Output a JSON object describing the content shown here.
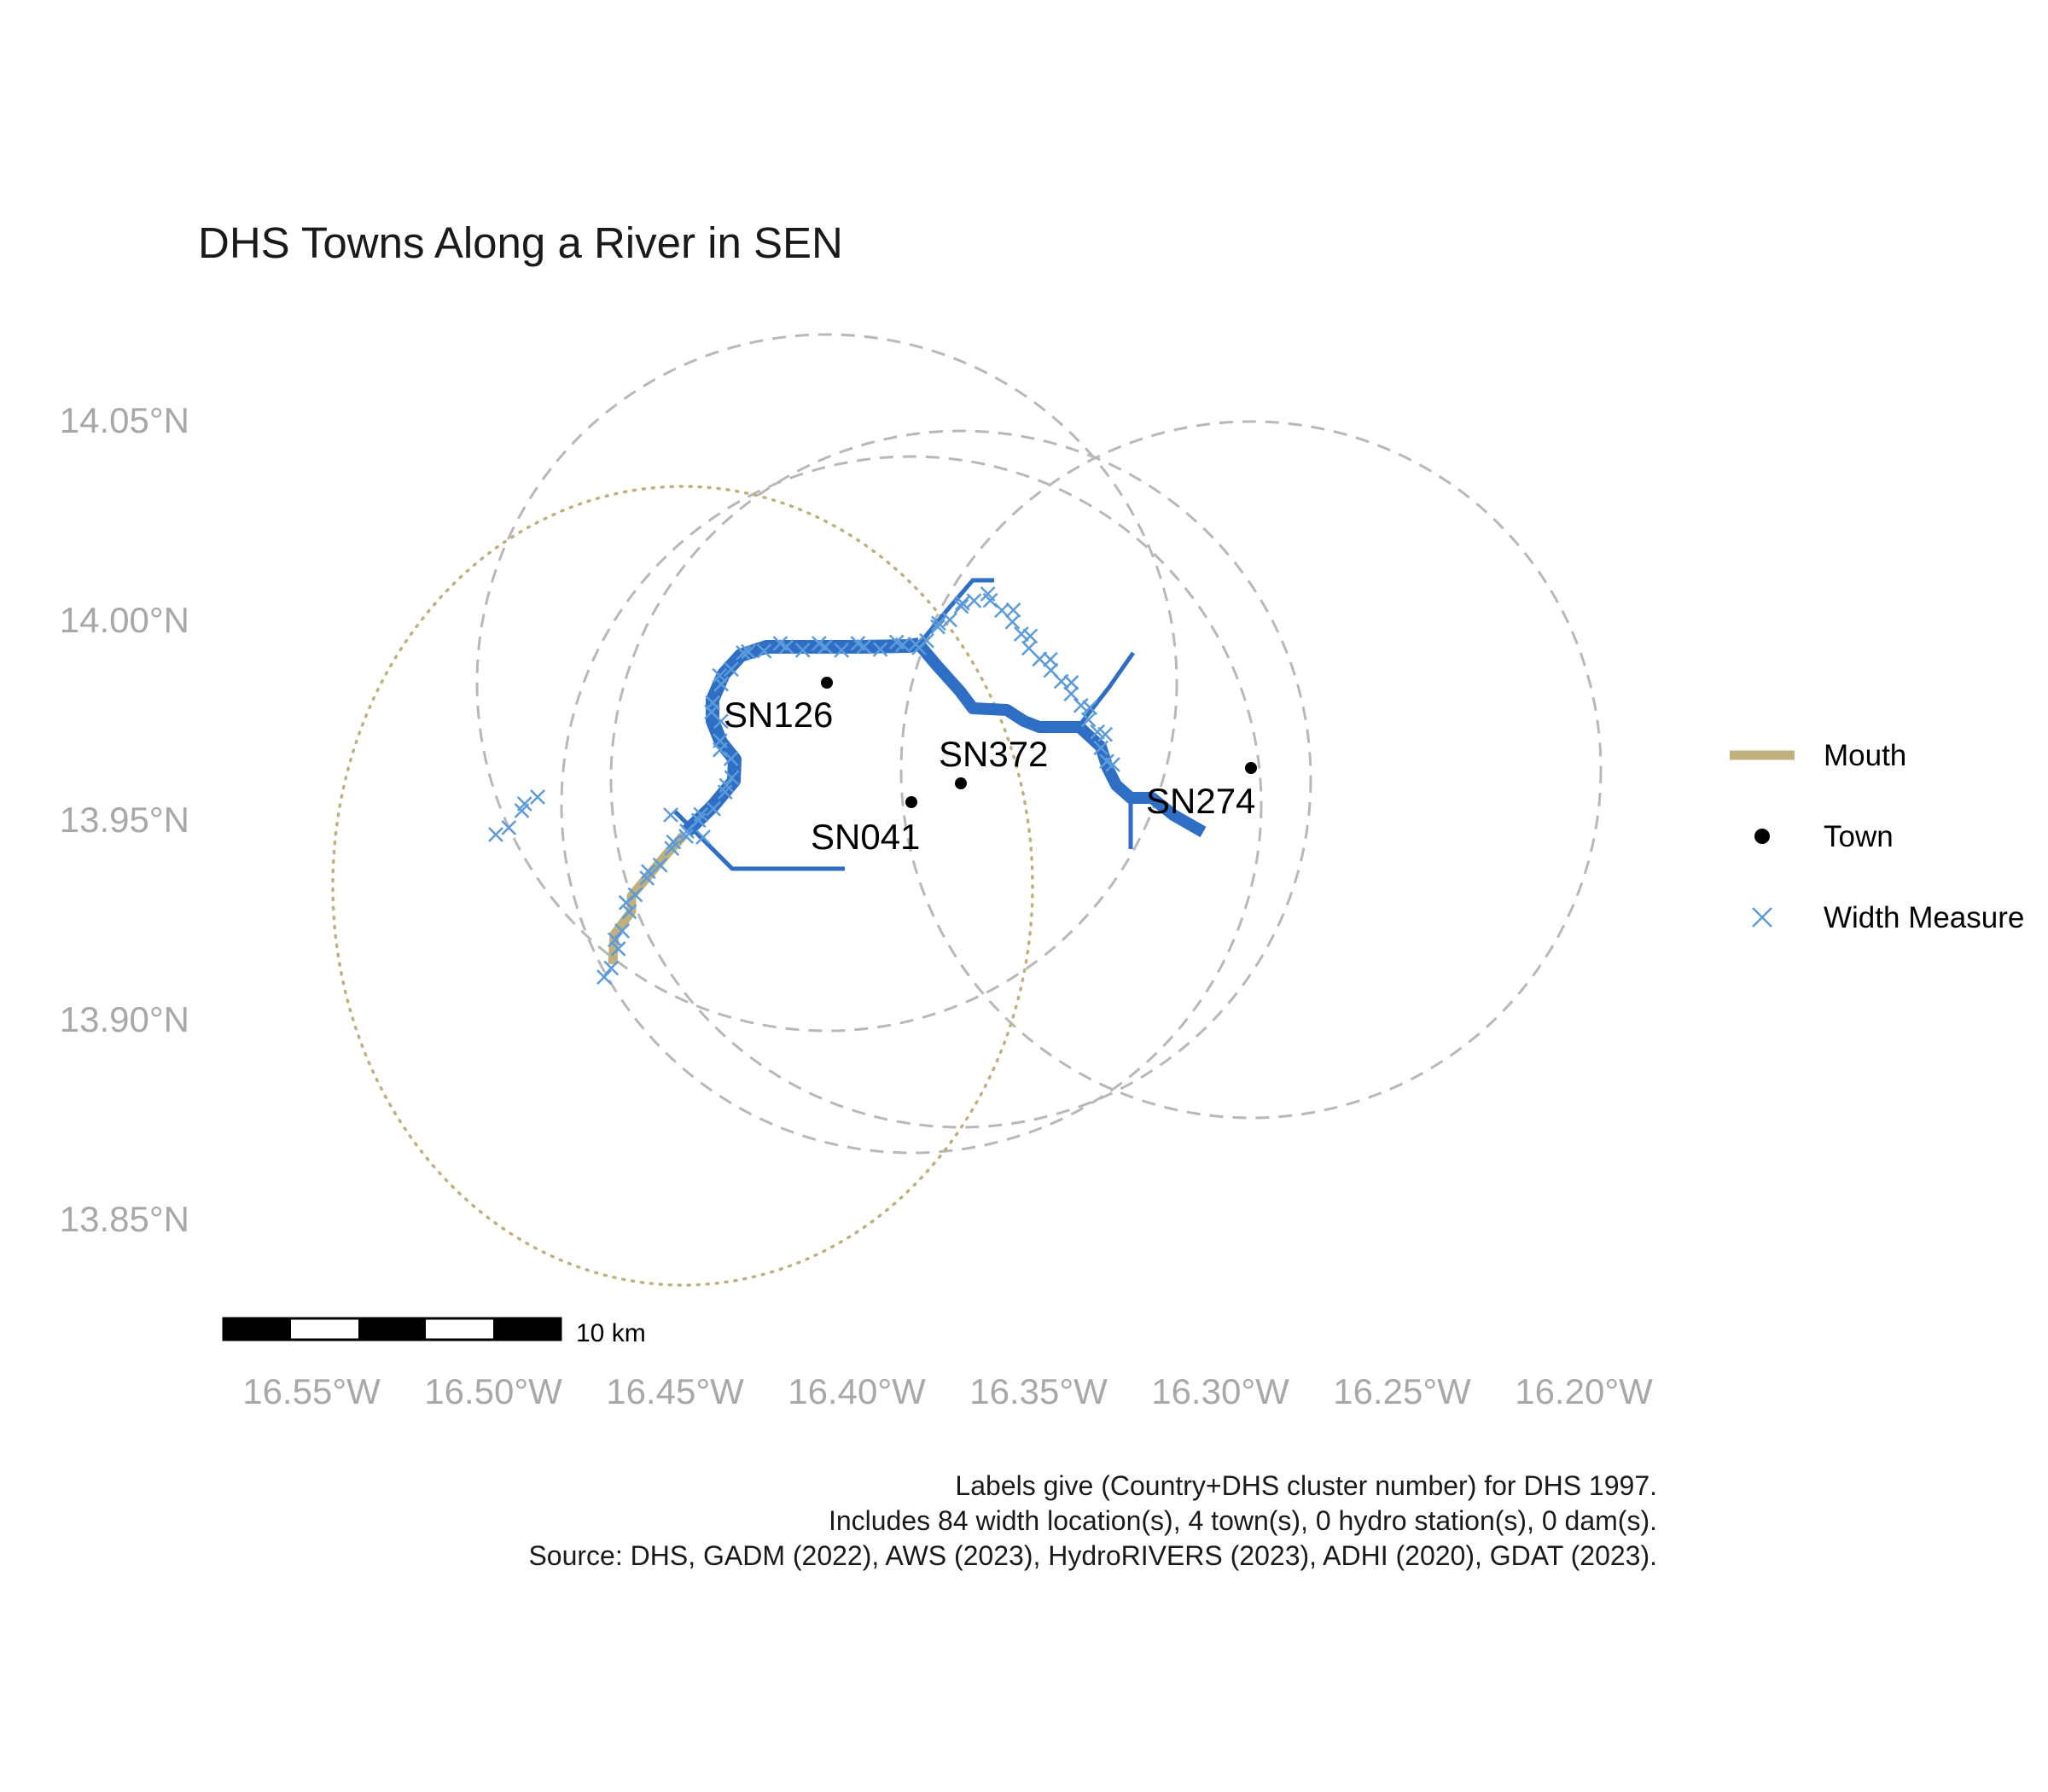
{
  "title": "DHS Towns Along a River in SEN",
  "axes": {
    "x_ticks": [
      "16.55°W",
      "16.50°W",
      "16.45°W",
      "16.40°W",
      "16.35°W",
      "16.30°W",
      "16.25°W",
      "16.20°W"
    ],
    "y_ticks": [
      "14.05°N",
      "14.00°N",
      "13.95°N",
      "13.90°N",
      "13.85°N"
    ]
  },
  "legend": {
    "items": [
      {
        "label": "Mouth",
        "symbol": "thick-line",
        "color": "#bfb07e"
      },
      {
        "label": "Town",
        "symbol": "dot",
        "color": "#000000"
      },
      {
        "label": "Width Measure",
        "symbol": "x-mark",
        "color": "#5b9bdb"
      }
    ]
  },
  "towns": [
    {
      "label": "SN126",
      "lon": -16.408,
      "lat": 13.984
    },
    {
      "label": "SN372",
      "lon": -16.372,
      "lat": 13.959
    },
    {
      "label": "SN041",
      "lon": -16.384,
      "lat": 13.954
    },
    {
      "label": "SN274",
      "lon": -16.295,
      "lat": 13.963
    }
  ],
  "scale_bar": {
    "label": "10 km"
  },
  "caption": [
    "Labels give (Country+DHS cluster number) for DHS 1997.",
    "Includes 84 width location(s), 4 town(s), 0 hydro station(s), 0 dam(s).",
    "Source: DHS, GADM (2022), AWS (2023), HydroRIVERS (2023), ADHI (2020), GDAT (2023)."
  ],
  "colors": {
    "river": "#2e6ec4",
    "mouth": "#bfb07e",
    "width_measure": "#5b9bdb",
    "buffer_circle": "#b8b8b8",
    "mouth_circle": "#bfb07e",
    "axis_text": "#a8a8a8"
  }
}
